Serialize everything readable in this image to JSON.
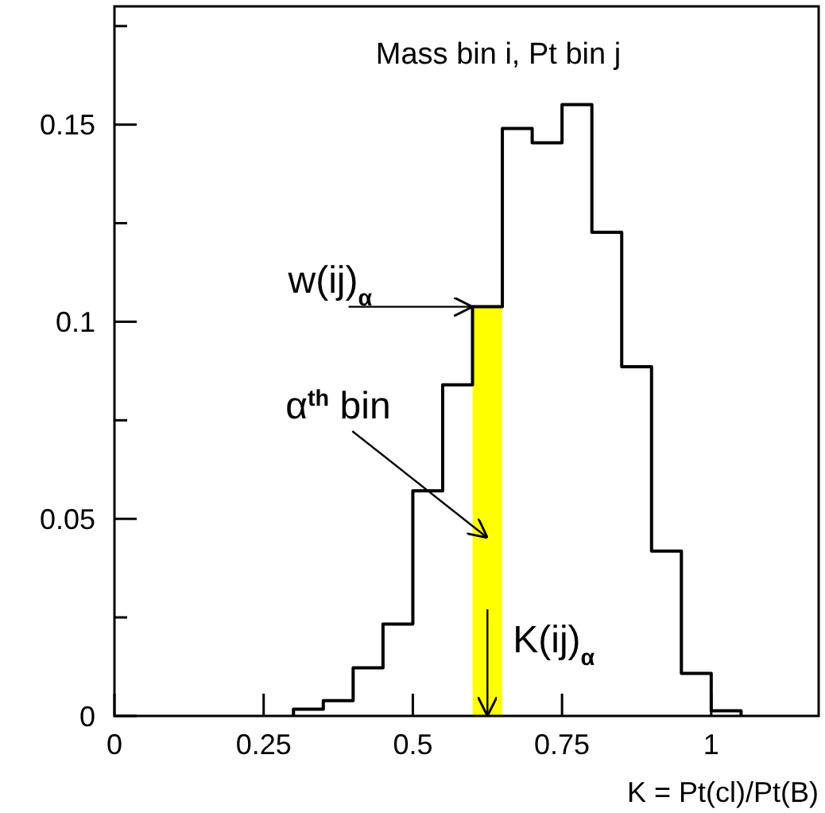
{
  "chart_data": {
    "type": "histogram",
    "title": "Mass bin i, Pt bin j",
    "xlabel": "K = Pt(cl)/Pt(B)",
    "bins": [
      0.3,
      0.35,
      0.4,
      0.45,
      0.5,
      0.55,
      0.6,
      0.65,
      0.7,
      0.75,
      0.8,
      0.85,
      0.9,
      0.95,
      1.0,
      1.05
    ],
    "values": [
      0.0017,
      0.0039,
      0.0122,
      0.0233,
      0.0571,
      0.084,
      0.1038,
      0.149,
      0.1454,
      0.1551,
      0.1227,
      0.0886,
      0.0418,
      0.0108,
      0.0013
    ],
    "color": "#000000",
    "xlim": [
      0,
      1.18
    ],
    "xticks": [
      0,
      0.25,
      0.5,
      0.75,
      1
    ],
    "ylim": [
      0,
      0.18
    ],
    "yticks": [
      0,
      {
        "value": 0.025,
        "label": null
      },
      0.05,
      {
        "value": 0.075,
        "label": null
      },
      0.1,
      {
        "value": 0.125,
        "label": null
      },
      0.15,
      {
        "value": 0.175,
        "label": null
      }
    ],
    "bands": [
      {
        "axis": "x",
        "from": 0.6,
        "to": 0.65,
        "color": "#ffff00"
      }
    ],
    "annotations": [
      {
        "text": "w(ij)$_{α}$",
        "x": 0.6,
        "y": 0.1038
      },
      "α$^{th}$ bin",
      {
        "text": "K(ij)$_{α}$",
        "x": 0.625,
        "y": 0
      }
    ]
  }
}
